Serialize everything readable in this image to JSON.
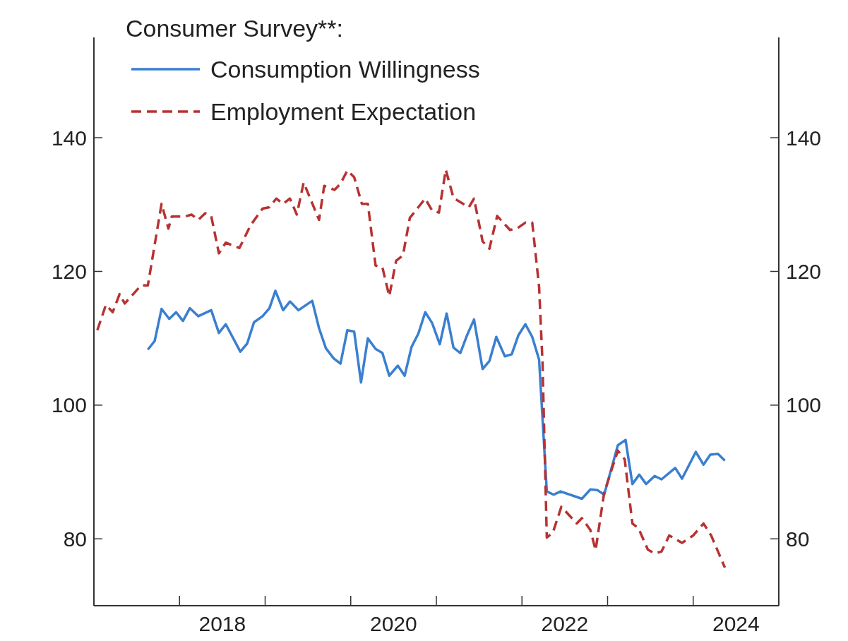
{
  "chart_data": {
    "type": "line",
    "legend_title": "Consumer Survey**:",
    "legend": "top left",
    "xlim": [
      2017,
      2025
    ],
    "xticks": [
      {
        "value": 2018,
        "label": null
      },
      {
        "value": 2019,
        "label": null
      },
      {
        "value": 2020,
        "label": null
      },
      {
        "value": 2021,
        "label": null
      },
      {
        "value": 2022,
        "label": null
      },
      {
        "value": 2023,
        "label": null
      },
      {
        "value": 2024,
        "label": null
      },
      {
        "value": 2018.5,
        "label": "2018"
      },
      {
        "value": 2020.5,
        "label": "2020"
      },
      {
        "value": 2022.5,
        "label": "2022"
      },
      {
        "value": 2024.5,
        "label": "2024"
      }
    ],
    "ylim": [
      70,
      155
    ],
    "yticks": [
      80,
      100,
      120,
      140
    ],
    "y2lim": [
      70,
      155
    ],
    "y2ticks": [
      80,
      100,
      120,
      140
    ],
    "series": [
      {
        "name": "Consumption Willingness",
        "color": "#3a7fd0",
        "line_style": "solid",
        "x": [
          2017.63,
          2017.71,
          2017.79,
          2017.88,
          2017.96,
          2018.04,
          2018.12,
          2018.22,
          2018.37,
          2018.46,
          2018.54,
          2018.71,
          2018.79,
          2018.87,
          2018.97,
          2019.05,
          2019.12,
          2019.21,
          2019.29,
          2019.39,
          2019.55,
          2019.63,
          2019.71,
          2019.8,
          2019.88,
          2019.96,
          2020.04,
          2020.12,
          2020.2,
          2020.29,
          2020.37,
          2020.45,
          2020.55,
          2020.63,
          2020.71,
          2020.79,
          2020.87,
          2020.95,
          2021.04,
          2021.12,
          2021.2,
          2021.28,
          2021.36,
          2021.44,
          2021.54,
          2021.62,
          2021.7,
          2021.8,
          2021.88,
          2021.96,
          2022.04,
          2022.12,
          2022.2,
          2022.29,
          2022.37,
          2022.45,
          2022.7,
          2022.8,
          2022.88,
          2022.96,
          2023.12,
          2023.21,
          2023.29,
          2023.37,
          2023.45,
          2023.55,
          2023.63,
          2023.79,
          2023.87,
          2024.03,
          2024.12,
          2024.2,
          2024.29,
          2024.37
        ],
        "values": [
          108.3,
          109.6,
          114.4,
          112.9,
          113.9,
          112.6,
          114.5,
          113.3,
          114.2,
          110.8,
          112.1,
          108,
          109.2,
          112.4,
          113.3,
          114.5,
          117.1,
          114.2,
          115.5,
          114.2,
          115.6,
          111.5,
          108.5,
          107,
          106.2,
          111.2,
          111,
          103.4,
          110,
          108.4,
          107.8,
          104.4,
          105.9,
          104.4,
          108.7,
          110.7,
          113.9,
          112.3,
          109.1,
          113.7,
          108.6,
          107.8,
          110.5,
          112.8,
          105.4,
          106.6,
          110.2,
          107.3,
          107.6,
          110.5,
          112.1,
          110.2,
          106.8,
          87.1,
          86.6,
          87.1,
          86,
          87.4,
          87.3,
          86.6,
          94,
          94.8,
          88.2,
          89.6,
          88.2,
          89.4,
          88.9,
          90.6,
          89,
          93,
          91.1,
          92.6,
          92.7,
          91.7
        ]
      },
      {
        "name": "Employment Expectation",
        "color": "#b83232",
        "line_style": "dashed",
        "x": [
          2017.04,
          2017.14,
          2017.22,
          2017.3,
          2017.36,
          2017.55,
          2017.63,
          2017.79,
          2017.87,
          2017.91,
          2018.06,
          2018.14,
          2018.22,
          2018.3,
          2018.37,
          2018.46,
          2018.54,
          2018.7,
          2018.83,
          2018.97,
          2019.05,
          2019.13,
          2019.21,
          2019.29,
          2019.37,
          2019.45,
          2019.63,
          2019.69,
          2019.81,
          2019.88,
          2019.96,
          2020.04,
          2020.13,
          2020.2,
          2020.29,
          2020.37,
          2020.45,
          2020.53,
          2020.61,
          2020.69,
          2020.87,
          2020.95,
          2021.03,
          2021.11,
          2021.2,
          2021.38,
          2021.44,
          2021.54,
          2021.62,
          2021.71,
          2021.86,
          2021.94,
          2022.04,
          2022.12,
          2022.2,
          2022.24,
          2022.29,
          2022.36,
          2022.46,
          2022.64,
          2022.7,
          2022.8,
          2022.86,
          2022.96,
          2023.12,
          2023.2,
          2023.29,
          2023.36,
          2023.47,
          2023.55,
          2023.63,
          2023.72,
          2023.87,
          2024,
          2024.12,
          2024.21,
          2024.37
        ],
        "values": [
          111.2,
          115,
          113.9,
          116.6,
          115.2,
          117.9,
          117.9,
          130.1,
          126.4,
          128.2,
          128.2,
          128.5,
          127.7,
          128.7,
          128.3,
          122.7,
          124.3,
          123.5,
          126.9,
          129.4,
          129.6,
          130.9,
          130.1,
          130.9,
          128.5,
          133.3,
          127.7,
          132.8,
          132.2,
          133.1,
          135.1,
          134.1,
          130.1,
          130.1,
          120.9,
          120.6,
          116.3,
          121.6,
          122.4,
          128,
          130.9,
          129.1,
          128.8,
          135.2,
          131,
          129.6,
          130.9,
          124.5,
          123.4,
          128.3,
          126.2,
          126.4,
          127.3,
          127.3,
          117.7,
          106.4,
          80.2,
          80.9,
          84.8,
          82.3,
          83.1,
          81.3,
          78.3,
          86.9,
          93.2,
          91.9,
          82.3,
          81.6,
          78.4,
          77.8,
          78.1,
          80.5,
          79.4,
          80.5,
          82.3,
          80.5,
          75.7
        ]
      }
    ]
  }
}
